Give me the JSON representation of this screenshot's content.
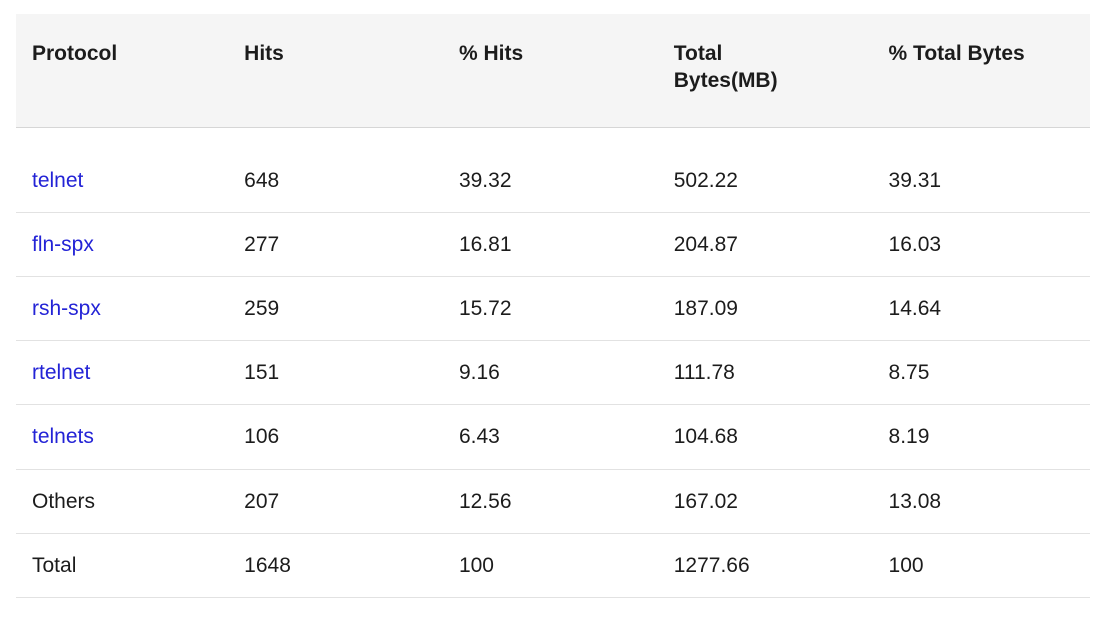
{
  "colors": {
    "link": "#2323d6",
    "header_bg": "#f5f5f5",
    "text": "#1c1c1c",
    "divider": "#e2e2e2"
  },
  "chart_data": {
    "type": "table",
    "columns": [
      "Protocol",
      "Hits",
      "% Hits",
      "Total Bytes(MB)",
      "% Total Bytes"
    ],
    "rows": [
      [
        "telnet",
        "648",
        "39.32",
        "502.22",
        "39.31"
      ],
      [
        "fln-spx",
        "277",
        "16.81",
        "204.87",
        "16.03"
      ],
      [
        "rsh-spx",
        "259",
        "15.72",
        "187.09",
        "14.64"
      ],
      [
        "rtelnet",
        "151",
        "9.16",
        "111.78",
        "8.75"
      ],
      [
        "telnets",
        "106",
        "6.43",
        "104.68",
        "8.19"
      ],
      [
        "Others",
        "207",
        "12.56",
        "167.02",
        "13.08"
      ],
      [
        "Total",
        "1648",
        "100",
        "1277.66",
        "100"
      ]
    ],
    "linked_protocol_rows": [
      0,
      1,
      2,
      3,
      4
    ],
    "layout": {
      "header_background": "#f5f5f5",
      "row_dividers": true,
      "alignment": "left"
    }
  }
}
